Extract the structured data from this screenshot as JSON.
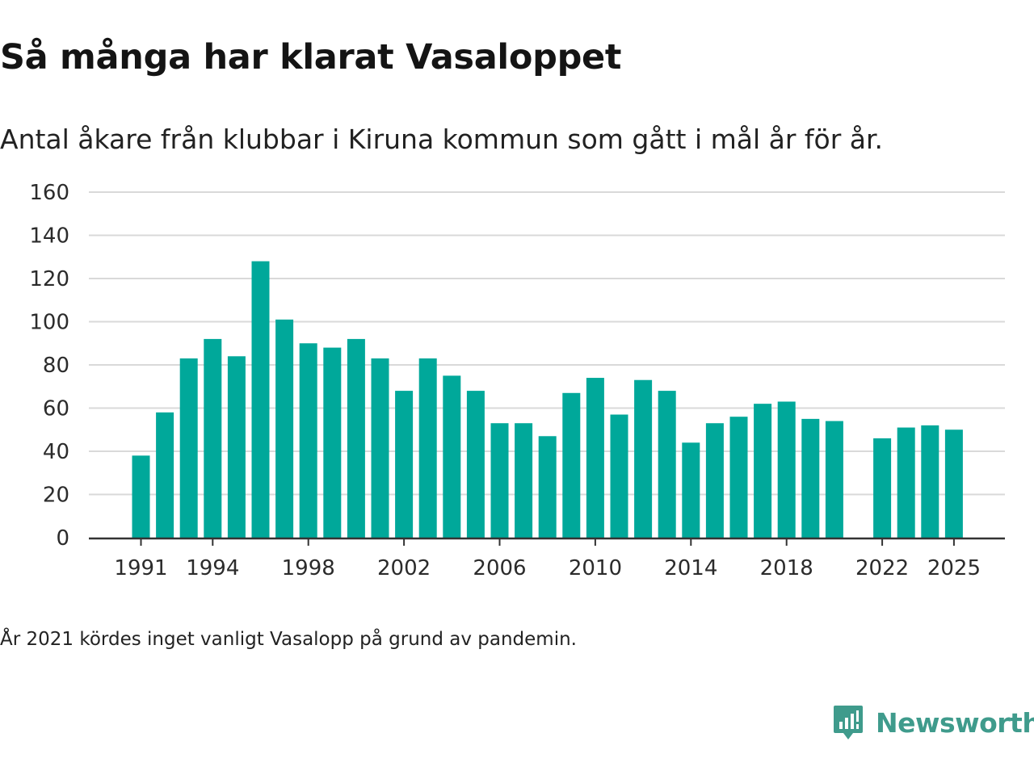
{
  "chart_data": {
    "type": "bar",
    "title": "Så många har klarat Vasaloppet",
    "subtitle": "Antal åkare från klubbar i Kiruna kommun som gått i mål år för år.",
    "xlabel": "",
    "ylabel": "",
    "ylim": [
      0,
      160
    ],
    "yticks": [
      0,
      20,
      40,
      60,
      80,
      100,
      120,
      140,
      160
    ],
    "xtick_labels": [
      "1991",
      "1994",
      "1998",
      "2002",
      "2006",
      "2010",
      "2014",
      "2018",
      "2022",
      "2025"
    ],
    "categories": [
      1991,
      1992,
      1993,
      1994,
      1995,
      1996,
      1997,
      1998,
      1999,
      2000,
      2001,
      2002,
      2003,
      2004,
      2005,
      2006,
      2007,
      2008,
      2009,
      2010,
      2011,
      2012,
      2013,
      2014,
      2015,
      2016,
      2017,
      2018,
      2019,
      2020,
      2021,
      2022,
      2023,
      2024,
      2025
    ],
    "values": [
      38,
      58,
      83,
      92,
      84,
      128,
      101,
      90,
      88,
      92,
      83,
      68,
      83,
      75,
      68,
      53,
      53,
      47,
      67,
      74,
      57,
      73,
      68,
      44,
      53,
      56,
      62,
      63,
      55,
      54,
      null,
      46,
      51,
      52,
      50
    ],
    "grid": true,
    "legend": "none",
    "colors": {
      "bar": "#00a89a",
      "grid": "#d9d9d9",
      "axis": "#333333"
    }
  },
  "footnote": "År 2021 kördes inget vanligt Vasalopp på grund av pandemin.",
  "brand": {
    "name": "Newsworthy",
    "color": "#3f9b8c",
    "icon": "chat-bar-chart-icon"
  }
}
